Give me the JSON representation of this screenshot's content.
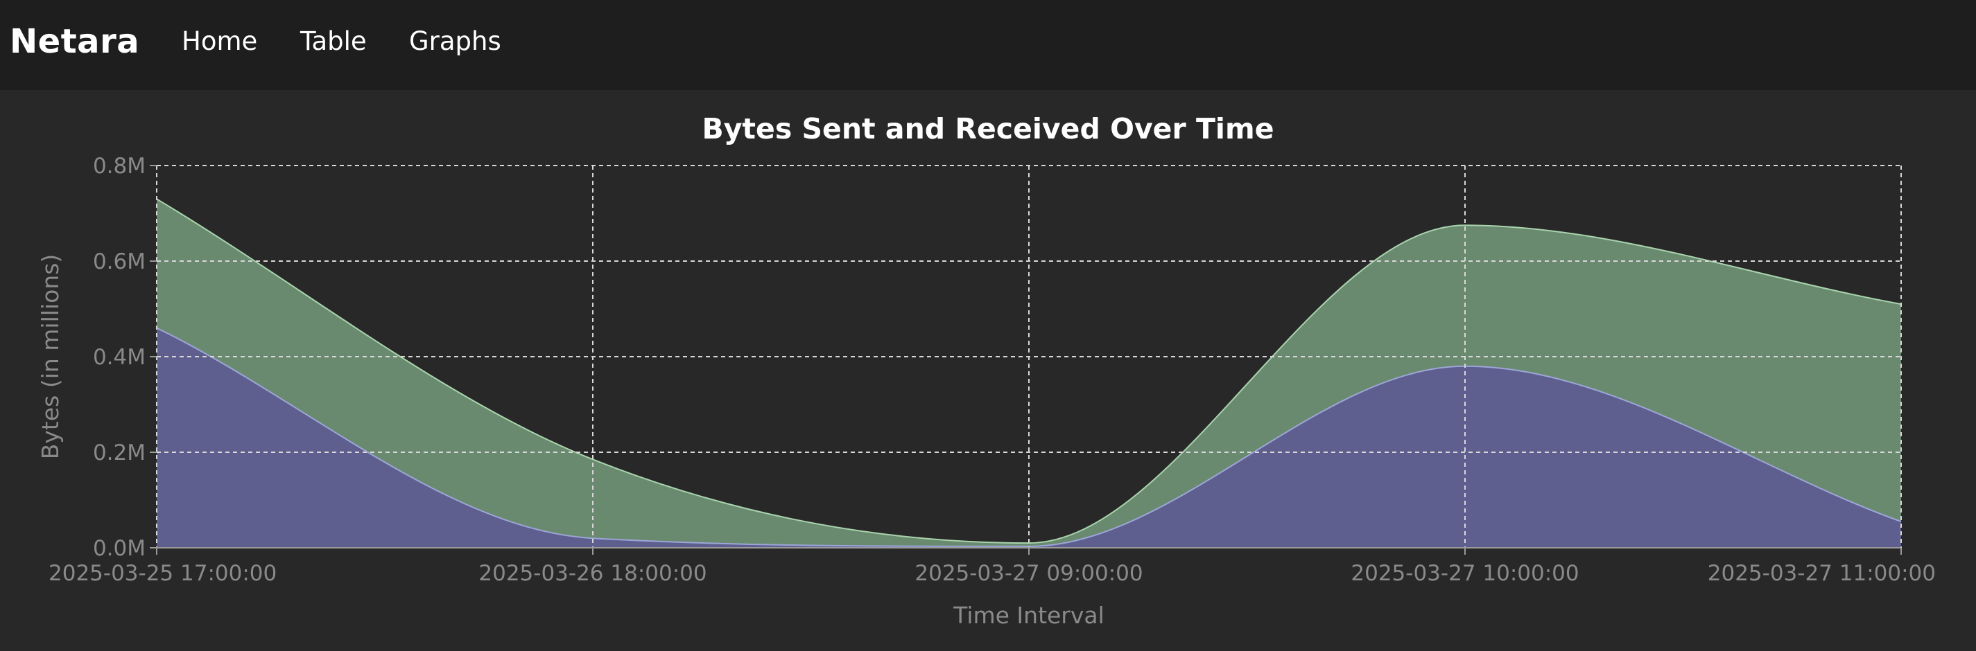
{
  "nav": {
    "brand": "Netara",
    "links": [
      {
        "label": "Home"
      },
      {
        "label": "Table"
      },
      {
        "label": "Graphs"
      }
    ]
  },
  "colors": {
    "nav_bg": "#1e1e1e",
    "page_bg": "#282828",
    "received_fill": "#6a8a70",
    "sent_fill": "#5f5f8f",
    "grid": "#d8d8d8",
    "axis_text": "#8a8a8a",
    "title_text": "#ffffff"
  },
  "chart_data": {
    "type": "area",
    "stacked": true,
    "title": "Bytes Sent and Received Over Time",
    "xlabel": "Time Interval",
    "ylabel": "Bytes (in millions)",
    "x": [
      "2025-03-25 17:00:00",
      "2025-03-26 18:00:00",
      "2025-03-27 09:00:00",
      "2025-03-27 10:00:00",
      "2025-03-27 11:00:00"
    ],
    "series": [
      {
        "values": [
          0.46,
          0.02,
          0.003,
          0.38,
          0.055
        ]
      },
      {
        "values": [
          0.27,
          0.165,
          0.007,
          0.295,
          0.455
        ]
      }
    ],
    "ylim": [
      0,
      0.8
    ],
    "yticks": [
      "0.0M",
      "0.2M",
      "0.4M",
      "0.6M",
      "0.8M"
    ],
    "grid": true,
    "legend": "none"
  }
}
